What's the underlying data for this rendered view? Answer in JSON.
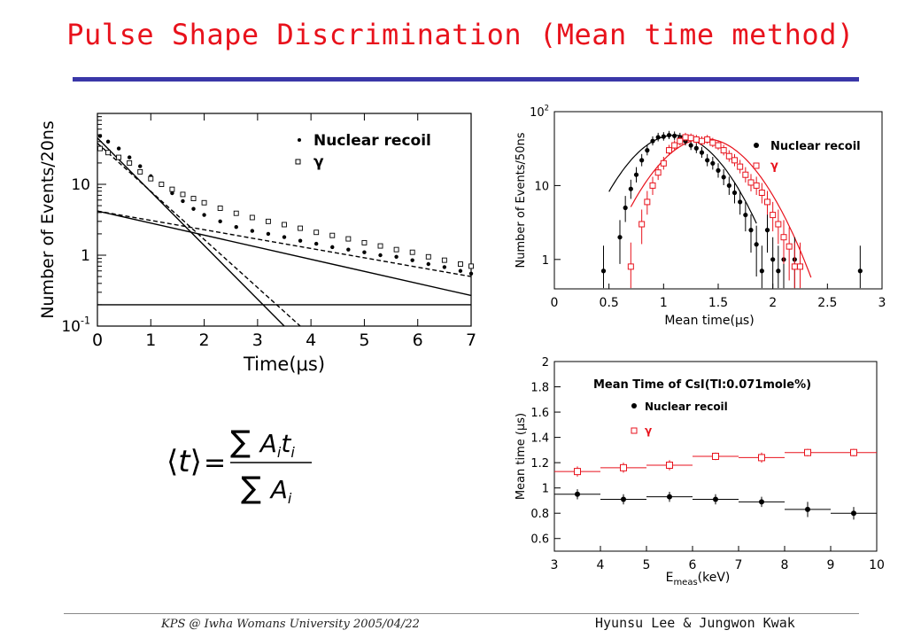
{
  "title": "Pulse Shape Discrimination (Mean time method)",
  "footer": {
    "left": "KPS @ Iwha Womans University  2005/04/22",
    "right": "Hyunsu Lee & Jungwon Kwak"
  },
  "formula": {
    "lhs": "⟨t⟩",
    "equals": "=",
    "numerator": "∑ A_i t_i",
    "denominator": "∑ A_i"
  },
  "chart_data": [
    {
      "id": "chart-time",
      "type": "scatter",
      "xlabel": "Time(μs)",
      "ylabel": "Number of Events/20ns",
      "xlim": [
        0,
        7
      ],
      "ylim": [
        0.1,
        100
      ],
      "yscale": "log",
      "x_ticks": [
        "0",
        "1",
        "2",
        "3",
        "4",
        "5",
        "6",
        "7"
      ],
      "y_ticks": [
        {
          "value": 0.1,
          "label": "10^-1"
        },
        {
          "value": 1,
          "label": "1"
        },
        {
          "value": 10,
          "label": "10"
        }
      ],
      "legend": {
        "position": "top-right",
        "entries": [
          "Nuclear recoil",
          "γ"
        ]
      },
      "series": [
        {
          "name": "Nuclear recoil",
          "marker": "dot",
          "x": [
            0.05,
            0.2,
            0.4,
            0.6,
            0.8,
            1.0,
            1.2,
            1.4,
            1.6,
            1.8,
            2.0,
            2.3,
            2.6,
            2.9,
            3.2,
            3.5,
            3.8,
            4.1,
            4.4,
            4.7,
            5.0,
            5.3,
            5.6,
            5.9,
            6.2,
            6.5,
            6.8,
            7.0
          ],
          "y": [
            48,
            40,
            32,
            24,
            18,
            13,
            10,
            7.5,
            5.8,
            4.5,
            3.7,
            3.0,
            2.5,
            2.2,
            2.0,
            1.8,
            1.6,
            1.45,
            1.3,
            1.2,
            1.1,
            1.0,
            0.95,
            0.85,
            0.75,
            0.68,
            0.6,
            0.55
          ]
        },
        {
          "name": "γ",
          "marker": "square",
          "x": [
            0.05,
            0.2,
            0.4,
            0.6,
            0.8,
            1.0,
            1.2,
            1.4,
            1.6,
            1.8,
            2.0,
            2.3,
            2.6,
            2.9,
            3.2,
            3.5,
            3.8,
            4.1,
            4.4,
            4.7,
            5.0,
            5.3,
            5.6,
            5.9,
            6.2,
            6.5,
            6.8,
            7.0
          ],
          "y": [
            32,
            28,
            24,
            20,
            15,
            12,
            10,
            8.5,
            7.2,
            6.3,
            5.5,
            4.6,
            3.9,
            3.4,
            3.0,
            2.7,
            2.4,
            2.1,
            1.9,
            1.7,
            1.5,
            1.35,
            1.2,
            1.1,
            0.95,
            0.85,
            0.75,
            0.7
          ]
        }
      ],
      "fit_lines": [
        {
          "style": "solid",
          "x": [
            0,
            3.5
          ],
          "y": [
            45,
            0.1
          ]
        },
        {
          "style": "dashed",
          "x": [
            0,
            3.8
          ],
          "y": [
            38,
            0.1
          ]
        },
        {
          "style": "solid",
          "x": [
            0,
            7
          ],
          "y": [
            4.2,
            0.27
          ]
        },
        {
          "style": "dashed",
          "x": [
            0,
            7
          ],
          "y": [
            4.2,
            0.5
          ]
        },
        {
          "style": "solid",
          "x": [
            0,
            7
          ],
          "y": [
            0.2,
            0.2
          ]
        }
      ]
    },
    {
      "id": "chart-meantime",
      "type": "scatter",
      "xlabel": "Mean time(μs)",
      "ylabel": "Number of Events/50ns",
      "xlim": [
        0,
        3
      ],
      "ylim": [
        0.4,
        100
      ],
      "yscale": "log",
      "x_ticks": [
        "0",
        "0.5",
        "1",
        "1.5",
        "2",
        "2.5",
        "3"
      ],
      "y_ticks": [
        {
          "value": 1,
          "label": "1"
        },
        {
          "value": 10,
          "label": "10"
        },
        {
          "value": 100,
          "label": "10^2"
        }
      ],
      "legend": {
        "position": "top-right",
        "entries": [
          "Nuclear recoil",
          "γ"
        ]
      },
      "series": [
        {
          "name": "Nuclear recoil",
          "marker": "dot",
          "color": "#000000",
          "x": [
            0.45,
            0.6,
            0.65,
            0.7,
            0.75,
            0.8,
            0.85,
            0.9,
            0.95,
            1.0,
            1.05,
            1.1,
            1.15,
            1.2,
            1.25,
            1.3,
            1.35,
            1.4,
            1.45,
            1.5,
            1.55,
            1.6,
            1.65,
            1.7,
            1.75,
            1.8,
            1.85,
            1.9,
            1.95,
            2.0,
            2.05,
            2.1,
            2.2,
            2.8
          ],
          "y": [
            0.7,
            2,
            5,
            9,
            14,
            22,
            30,
            40,
            45,
            46,
            48,
            47,
            45,
            40,
            35,
            32,
            28,
            22,
            20,
            16,
            13,
            10,
            8,
            6,
            4,
            2.5,
            1.6,
            0.7,
            2.5,
            1,
            0.7,
            1,
            1,
            0.7
          ]
        },
        {
          "name": "γ",
          "marker": "square",
          "color": "#e8121c",
          "x": [
            0.7,
            0.8,
            0.85,
            0.9,
            0.95,
            1.0,
            1.05,
            1.1,
            1.15,
            1.2,
            1.25,
            1.3,
            1.35,
            1.4,
            1.45,
            1.5,
            1.55,
            1.6,
            1.65,
            1.7,
            1.75,
            1.8,
            1.85,
            1.9,
            1.95,
            2.0,
            2.05,
            2.1,
            2.15,
            2.2,
            2.25
          ],
          "y": [
            0.8,
            3,
            6,
            10,
            15,
            20,
            30,
            35,
            40,
            45,
            44,
            42,
            40,
            42,
            38,
            35,
            30,
            25,
            22,
            18,
            14,
            11,
            10,
            8,
            6,
            4,
            3,
            2,
            1.5,
            0.8,
            0.8
          ]
        }
      ],
      "fit_lines": [
        {
          "color": "#000000",
          "peak_x": 1.1,
          "peak_y": 48,
          "sigma": 0.32,
          "x_range": [
            0.5,
            1.85
          ]
        },
        {
          "color": "#e8121c",
          "peak_x": 1.38,
          "peak_y": 43,
          "sigma": 0.33,
          "x_range": [
            0.7,
            2.35
          ]
        }
      ]
    },
    {
      "id": "chart-energy",
      "type": "scatter",
      "title": "Mean Time of CsI(Tl:0.071mole%)",
      "xlabel": "E_meas(keV)",
      "ylabel": "Mean time (μs)",
      "xlim": [
        3,
        10
      ],
      "ylim": [
        0.5,
        2.0
      ],
      "x_ticks": [
        "3",
        "4",
        "5",
        "6",
        "7",
        "8",
        "9",
        "10"
      ],
      "y_ticks": [
        "0.6",
        "0.8",
        "1",
        "1.2",
        "1.4",
        "1.6",
        "1.8",
        "2"
      ],
      "legend": {
        "position": "top-left",
        "entries": [
          "Nuclear recoil",
          "γ"
        ]
      },
      "series": [
        {
          "name": "Nuclear recoil",
          "marker": "dot",
          "color": "#000000",
          "x": [
            3.5,
            4.5,
            5.5,
            6.5,
            7.5,
            8.5,
            9.5
          ],
          "y": [
            0.95,
            0.91,
            0.93,
            0.91,
            0.89,
            0.83,
            0.8
          ],
          "yerr": [
            0.04,
            0.04,
            0.04,
            0.04,
            0.04,
            0.06,
            0.05
          ]
        },
        {
          "name": "γ",
          "marker": "square",
          "color": "#e8121c",
          "x": [
            3.5,
            4.5,
            5.5,
            6.5,
            7.5,
            8.5,
            9.5
          ],
          "y": [
            1.13,
            1.16,
            1.18,
            1.25,
            1.24,
            1.28,
            1.28
          ],
          "yerr": [
            0.04,
            0.04,
            0.04,
            0.03,
            0.04,
            0.03,
            0.03
          ]
        }
      ]
    }
  ]
}
